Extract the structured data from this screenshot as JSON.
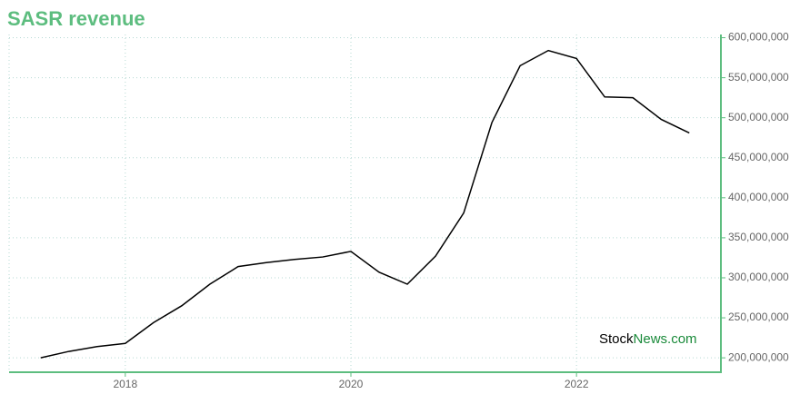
{
  "chart_data": {
    "type": "line",
    "title": "SASR revenue",
    "x": [
      2017.25,
      2017.5,
      2017.75,
      2018,
      2018.25,
      2018.5,
      2018.75,
      2019,
      2019.25,
      2019.5,
      2019.75,
      2020,
      2020.25,
      2020.5,
      2020.75,
      2021,
      2021.25,
      2021.5,
      2021.75,
      2022,
      2022.25,
      2022.5,
      2022.75,
      2023
    ],
    "values": [
      200000000,
      208000000,
      214000000,
      218000000,
      244000000,
      265000000,
      292000000,
      314000000,
      319000000,
      323000000,
      326000000,
      333000000,
      307000000,
      292000000,
      327000000,
      381000000,
      494000000,
      565000000,
      584000000,
      574000000,
      526000000,
      525000000,
      498000000,
      481000000
    ],
    "color": "#000000",
    "xlim": [
      2016.97,
      2023.28
    ],
    "xticks": [
      2018,
      2020,
      2022
    ],
    "ylim": [
      182000000,
      604000000
    ],
    "yticks": [
      {
        "value": 200000000,
        "label": "200,000,000"
      },
      {
        "value": 250000000,
        "label": "250,000,000"
      },
      {
        "value": 300000000,
        "label": "300,000,000"
      },
      {
        "value": 350000000,
        "label": "350,000,000"
      },
      {
        "value": 400000000,
        "label": "400,000,000"
      },
      {
        "value": 450000000,
        "label": "450,000,000"
      },
      {
        "value": 500000000,
        "label": "500,000,000"
      },
      {
        "value": 550000000,
        "label": "550,000,000"
      },
      {
        "value": 600000000,
        "label": "600,000,000"
      }
    ],
    "grid": true,
    "watermark": {
      "prefix": "Stock",
      "suffix": "News.com"
    }
  }
}
